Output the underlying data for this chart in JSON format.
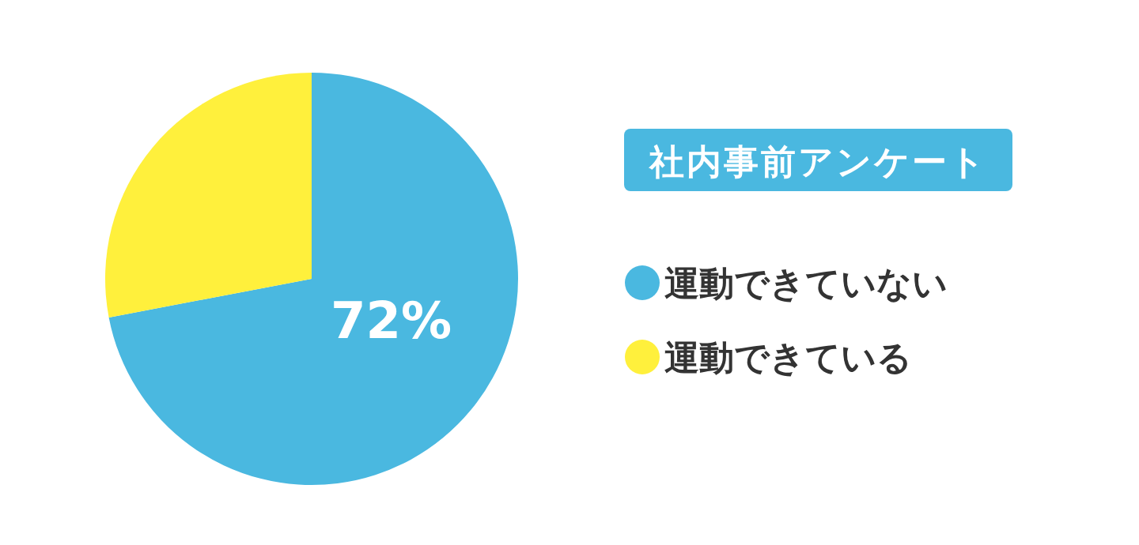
{
  "chart_data": {
    "type": "pie",
    "title": "社内事前アンケート",
    "categories": [
      "運動できていない",
      "運動できている"
    ],
    "values": [
      72,
      28
    ],
    "colors": [
      "#4ab8e0",
      "#fff03c"
    ],
    "value_labels": [
      "72%",
      null
    ],
    "legend": "right"
  }
}
